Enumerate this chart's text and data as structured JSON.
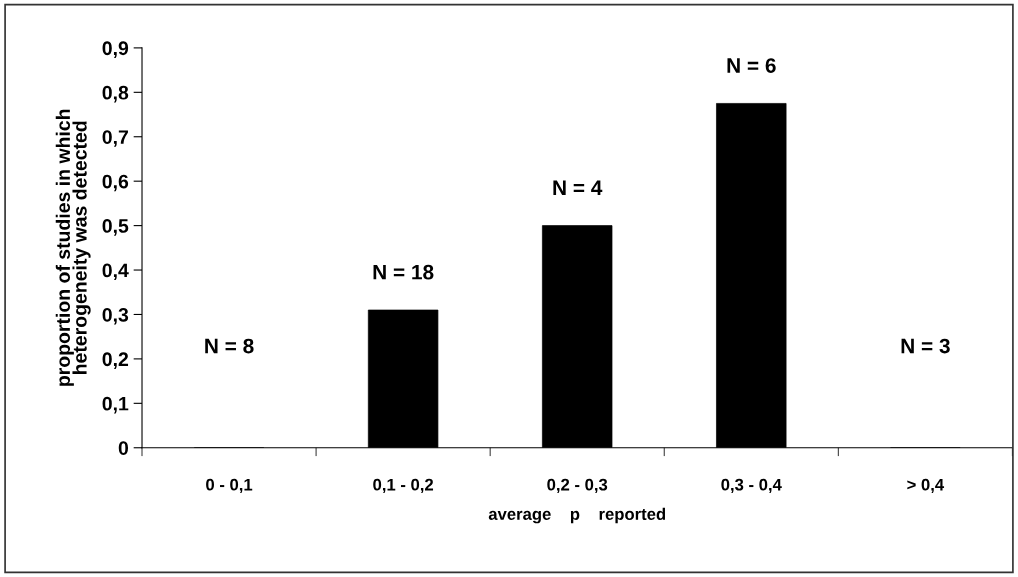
{
  "chart_data": {
    "type": "bar",
    "xlabel": "average    p    reported",
    "ylabel": "proportion of studies in which\nheterogeneity was detected",
    "categories": [
      "0 - 0,1",
      "0,1 - 0,2",
      "0,2 - 0,3",
      "0,3 - 0,4",
      "> 0,4"
    ],
    "values": [
      0,
      0.31,
      0.5,
      0.775,
      0
    ],
    "color": "#000000",
    "ylim": [
      0,
      0.9
    ],
    "yticks": [
      {
        "value": 0,
        "label": "0"
      },
      {
        "value": 0.1,
        "label": "0,1"
      },
      {
        "value": 0.2,
        "label": "0,2"
      },
      {
        "value": 0.3,
        "label": "0,3"
      },
      {
        "value": 0.4,
        "label": "0,4"
      },
      {
        "value": 0.5,
        "label": "0,5"
      },
      {
        "value": 0.6,
        "label": "0,6"
      },
      {
        "value": 0.7,
        "label": "0,7"
      },
      {
        "value": 0.8,
        "label": "0,8"
      },
      {
        "value": 0.9,
        "label": "0,9"
      }
    ],
    "annotations": [
      "N = 8",
      "N = 18",
      "N = 4",
      "N = 6",
      "N = 3"
    ],
    "grid": false,
    "legend": false
  }
}
